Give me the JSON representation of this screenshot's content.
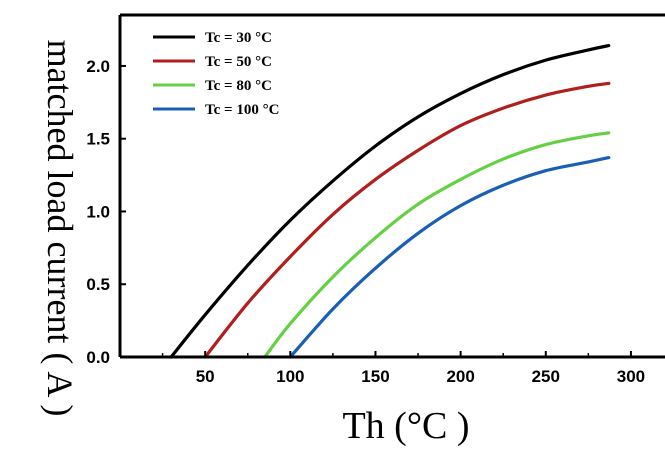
{
  "chart_data": {
    "type": "line",
    "title": "",
    "xlabel": "Th (°C )",
    "ylabel": "matched load current ( A )",
    "xlim": [
      0,
      320
    ],
    "ylim": [
      0,
      2.35
    ],
    "x_ticks": [
      50,
      100,
      150,
      200,
      250,
      300
    ],
    "y_ticks": [
      0.0,
      0.5,
      1.0,
      1.5,
      2.0
    ],
    "y_tick_labels": [
      "0.0",
      "0.5",
      "1.0",
      "1.5",
      "2.0"
    ],
    "grid": false,
    "legend_position": "top-left",
    "series": [
      {
        "name": "Tc = 30 °C",
        "color": "#000000",
        "x": [
          30,
          50,
          75,
          100,
          125,
          150,
          175,
          200,
          225,
          250,
          275,
          287
        ],
        "y": [
          0.0,
          0.29,
          0.63,
          0.94,
          1.21,
          1.45,
          1.65,
          1.81,
          1.94,
          2.04,
          2.11,
          2.14
        ]
      },
      {
        "name": "Tc = 50 °C",
        "color": "#b01e1e",
        "x": [
          50,
          75,
          100,
          125,
          150,
          175,
          200,
          225,
          250,
          275,
          287
        ],
        "y": [
          0.0,
          0.37,
          0.69,
          0.98,
          1.22,
          1.42,
          1.59,
          1.71,
          1.8,
          1.86,
          1.88
        ]
      },
      {
        "name": "Tc = 80 °C",
        "color": "#66d044",
        "x": [
          85,
          100,
          125,
          150,
          175,
          200,
          225,
          250,
          275,
          287
        ],
        "y": [
          0.0,
          0.23,
          0.55,
          0.82,
          1.05,
          1.22,
          1.36,
          1.46,
          1.52,
          1.54
        ]
      },
      {
        "name": "Tc = 100  °C",
        "color": "#1a5fb4",
        "x": [
          100,
          125,
          150,
          175,
          200,
          225,
          250,
          275,
          287
        ],
        "y": [
          0.0,
          0.33,
          0.61,
          0.85,
          1.04,
          1.18,
          1.28,
          1.34,
          1.37
        ]
      }
    ]
  }
}
